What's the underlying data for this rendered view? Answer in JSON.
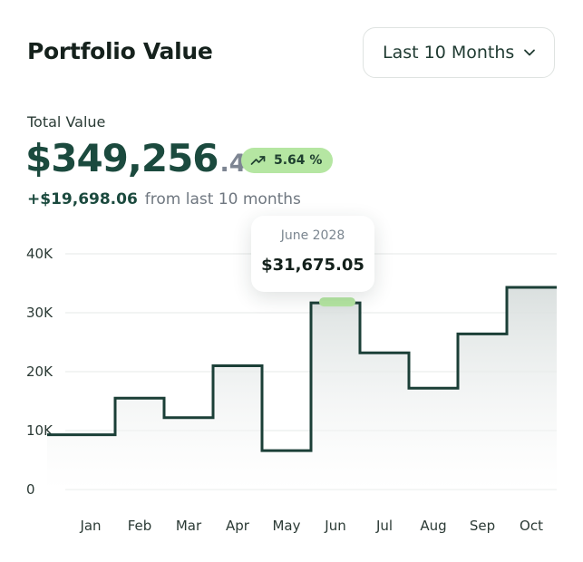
{
  "header": {
    "title": "Portfolio Value",
    "range_select": {
      "value": "Last 10 Months",
      "icon": "chevron-down-icon"
    }
  },
  "summary": {
    "label": "Total Value",
    "value_int": "$349,256",
    "value_dec": ".45",
    "badge": {
      "text": "5.64 %",
      "icon": "trend-up-icon",
      "color": "#b5e6a2"
    },
    "change_amount": "+$19,698.06",
    "change_caption": "from last 10 months"
  },
  "tooltip": {
    "date": "June 2028",
    "value": "$31,675.05"
  },
  "colors": {
    "line": "#1b3f37",
    "highlight": "#b5e6a2",
    "grid": "#e5e8e7"
  },
  "chart_data": {
    "type": "line",
    "step": true,
    "categories": [
      "Jan",
      "Feb",
      "Mar",
      "Apr",
      "May",
      "Jun",
      "Jul",
      "Aug",
      "Sep",
      "Oct"
    ],
    "values": [
      9300,
      15500,
      12200,
      21000,
      6600,
      31675.05,
      23200,
      17200,
      26400,
      34300
    ],
    "y_ticks": [
      "0",
      "10K",
      "20K",
      "30K",
      "40K"
    ],
    "ylim": [
      0,
      40000
    ],
    "highlight_category": "Jun",
    "grid": true
  }
}
